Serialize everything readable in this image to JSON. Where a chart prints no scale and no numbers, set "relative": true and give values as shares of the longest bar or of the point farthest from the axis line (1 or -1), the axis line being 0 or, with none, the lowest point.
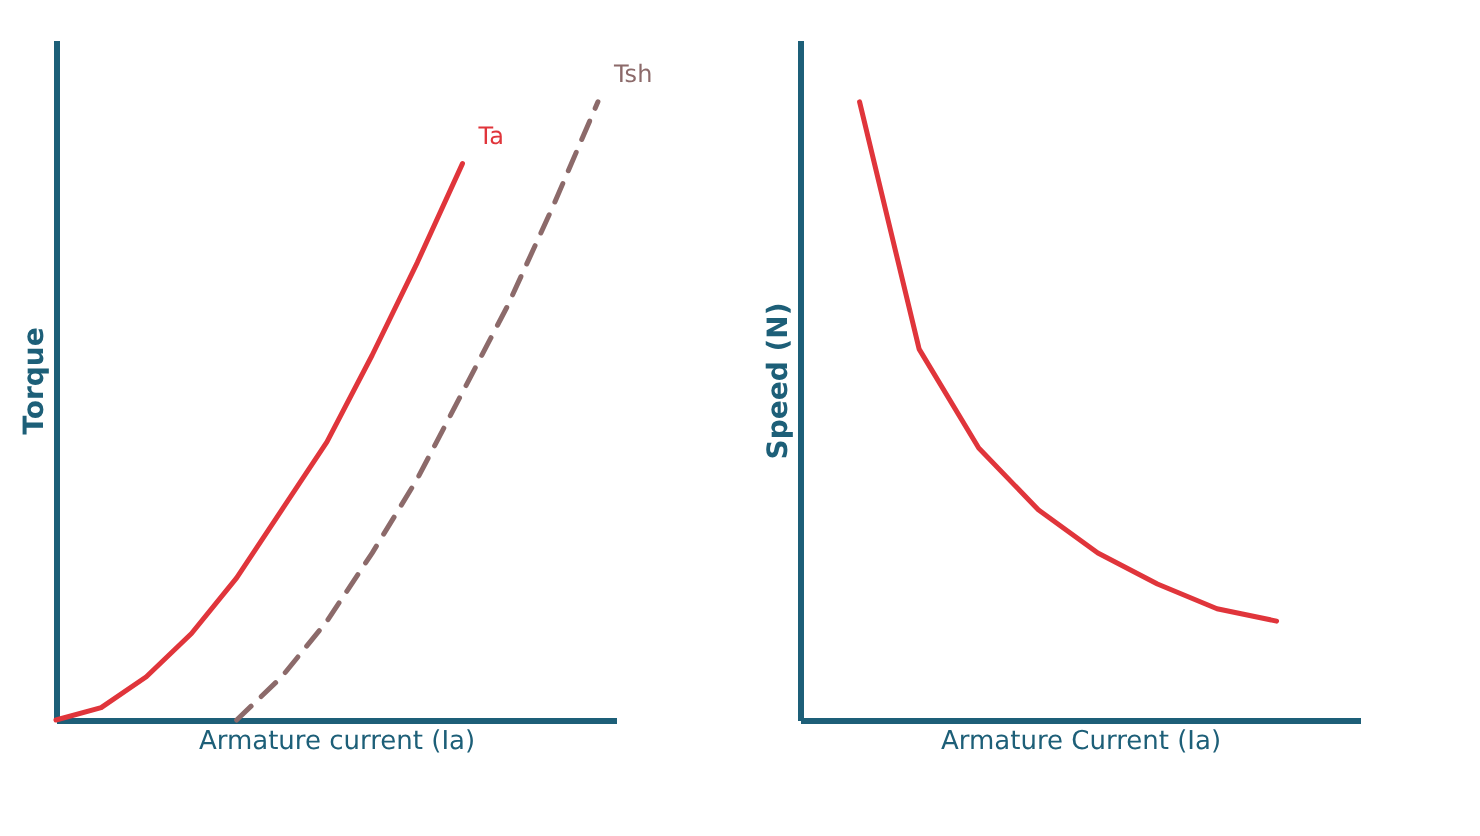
{
  "chart_data": [
    {
      "type": "line",
      "relative": true,
      "xlabel": "Armature current (Ia)",
      "ylabel": "Torque",
      "categories": [
        null,
        null,
        null,
        null,
        null,
        null,
        null,
        null,
        null,
        null,
        null,
        null,
        null
      ],
      "series": [
        {
          "name": "Ta",
          "color": "#e0353b",
          "line_style": "solid",
          "values": [
            0,
            0.02,
            0.07,
            0.14,
            0.23,
            0.34,
            0.45,
            0.59,
            0.74,
            0.9,
            null,
            null,
            null
          ]
        },
        {
          "name": "Tsh",
          "color": "#8c6a6a",
          "line_style": "dashed",
          "values": [
            null,
            null,
            null,
            null,
            0,
            0.07,
            0.16,
            0.27,
            0.39,
            0.53,
            0.67,
            0.83,
            1
          ]
        }
      ]
    },
    {
      "type": "line",
      "relative": true,
      "xlabel": "Armature Current (Ia)",
      "ylabel": "Speed (N)",
      "categories": [
        null,
        null,
        null,
        null,
        null,
        null,
        null,
        null,
        null,
        null
      ],
      "series": [
        {
          "color": "#e0353b",
          "line_style": "solid",
          "values": [
            null,
            1,
            0.6,
            0.44,
            0.34,
            0.27,
            0.22,
            0.18,
            0.16,
            null
          ]
        }
      ]
    }
  ]
}
